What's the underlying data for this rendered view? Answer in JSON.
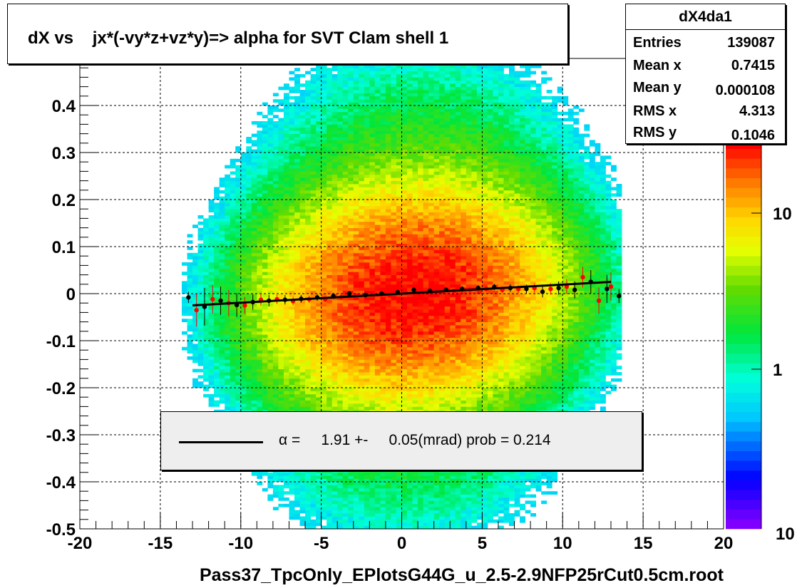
{
  "title": "dX vs    jx*(-vy*z+vz*y)=> alpha for SVT Clam shell 1",
  "stats": {
    "name": "dX4da1",
    "rows": [
      {
        "label": "Entries",
        "value": "139087"
      },
      {
        "label": "Mean x",
        "value": "0.7415"
      },
      {
        "label": "Mean y",
        "value": "0.000108"
      },
      {
        "label": "RMS x",
        "value": "4.313"
      },
      {
        "label": "RMS y",
        "value": "0.1046"
      }
    ]
  },
  "legend": {
    "text": "α =     1.91 +-     0.05(mrad) prob = 0.214"
  },
  "chart_data": {
    "type": "heatmap",
    "xlabel": "Pass37_TpcOnly_EPlotsG44G_u_2.5-2.9NFP25rCut0.5cm.root",
    "ylabel": "",
    "xlim": [
      -20,
      20
    ],
    "ylim": [
      -0.5,
      0.5
    ],
    "x_ticks": [
      "-20",
      "-15",
      "-10",
      "-5",
      "0",
      "5",
      "10",
      "15",
      "20"
    ],
    "y_ticks": [
      "-0.5",
      "-0.4",
      "-0.3",
      "-0.2",
      "-0.1",
      "0",
      "0.1",
      "0.2",
      "0.3",
      "0.4"
    ],
    "grid": true,
    "colorbar": {
      "scale": "log",
      "tick_labels": [
        "1",
        "10"
      ],
      "bottom_label": "10"
    },
    "density": {
      "center_x": 0.7,
      "center_y": 0.0,
      "sigma_x": 4.3,
      "sigma_y": 0.105,
      "x_range": [
        -13.5,
        13.5
      ],
      "y_range": [
        -0.5,
        0.5
      ]
    },
    "fit_line": {
      "x": [
        -13,
        13
      ],
      "y": [
        -0.025,
        0.025
      ],
      "color": "#000000"
    },
    "series": [
      {
        "name": "",
        "color": "#000000",
        "x": [
          -13.25,
          -12.25,
          -11.25,
          -10.25,
          -9.25,
          -8.25,
          -7.25,
          -6.25,
          -5.25,
          -4.25,
          -3.25,
          -2.25,
          -1.25,
          -0.25,
          0.75,
          1.75,
          2.75,
          3.75,
          4.75,
          5.75,
          6.75,
          7.75,
          8.75,
          9.75,
          10.75,
          11.75,
          12.75,
          13.5
        ],
        "y": [
          -0.008,
          -0.028,
          -0.015,
          -0.024,
          -0.018,
          -0.015,
          -0.013,
          -0.011,
          -0.008,
          -0.005,
          0.0,
          -0.003,
          0.0,
          0.003,
          0.008,
          0.006,
          0.008,
          0.01,
          0.012,
          0.014,
          0.012,
          0.01,
          0.004,
          0.012,
          0.008,
          0.025,
          0.01,
          -0.005
        ],
        "err": [
          0.012,
          0.04,
          0.03,
          0.025,
          0.016,
          0.012,
          0.01,
          0.008,
          0.007,
          0.006,
          0.005,
          0.005,
          0.005,
          0.005,
          0.005,
          0.005,
          0.005,
          0.006,
          0.006,
          0.007,
          0.008,
          0.009,
          0.012,
          0.014,
          0.018,
          0.025,
          0.03,
          0.015
        ]
      },
      {
        "name": "",
        "color": "#ff0000",
        "x": [
          -12.75,
          -11.75,
          -10.75,
          -9.75,
          -8.75,
          -7.75,
          -6.75,
          -5.75,
          -4.75,
          -3.75,
          -2.75,
          -1.75,
          -0.75,
          0.25,
          1.25,
          2.25,
          3.25,
          4.25,
          5.25,
          6.25,
          7.25,
          8.25,
          9.25,
          10.25,
          11.25,
          12.25,
          13.0
        ],
        "y": [
          -0.035,
          -0.012,
          -0.02,
          -0.025,
          -0.013,
          -0.012,
          -0.016,
          -0.012,
          -0.012,
          -0.007,
          -0.004,
          -0.002,
          -0.004,
          0.002,
          0.004,
          0.006,
          0.006,
          0.008,
          0.01,
          0.008,
          0.01,
          0.012,
          0.01,
          0.015,
          0.035,
          -0.015,
          0.015
        ],
        "err": [
          0.035,
          0.03,
          0.028,
          0.018,
          0.013,
          0.01,
          0.009,
          0.008,
          0.006,
          0.006,
          0.005,
          0.005,
          0.005,
          0.005,
          0.005,
          0.005,
          0.005,
          0.006,
          0.006,
          0.007,
          0.008,
          0.01,
          0.012,
          0.016,
          0.022,
          0.028,
          0.03
        ]
      }
    ]
  }
}
